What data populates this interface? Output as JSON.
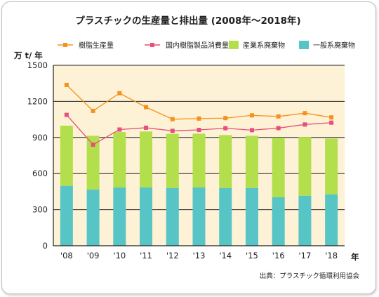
{
  "chart_data": {
    "type": "bar",
    "title": "プラスチックの生産量と排出量 (2008年〜2018年)",
    "ylabel": "万 t/ 年",
    "xlabel": "年",
    "ylim": [
      0,
      1500
    ],
    "yticks": [
      0,
      300,
      600,
      900,
      1200,
      1500
    ],
    "grid": true,
    "legend_position": "top",
    "categories": [
      "'08",
      "'09",
      "'10",
      "'11",
      "'12",
      "'13",
      "'14",
      "'15",
      "'16",
      "'17",
      "'18"
    ],
    "series": [
      {
        "name": "樹脂生産量",
        "kind": "line",
        "color": "#f5921e",
        "values": [
          1337,
          1121,
          1268,
          1152,
          1052,
          1057,
          1061,
          1084,
          1075,
          1102,
          1067
        ]
      },
      {
        "name": "国内樹脂製品消費量",
        "kind": "line",
        "color": "#e6507a",
        "values": [
          1088,
          840,
          966,
          981,
          955,
          963,
          977,
          961,
          978,
          1008,
          1023
        ]
      },
      {
        "name": "産業系廃棄物",
        "kind": "stacked-bar",
        "color": "#b3df4c",
        "values": [
          500,
          446,
          460,
          465,
          450,
          447,
          440,
          434,
          496,
          487,
          463
        ]
      },
      {
        "name": "一般系廃棄物",
        "kind": "stacked-bar",
        "color": "#57c4c6",
        "values": [
          498,
          468,
          485,
          485,
          480,
          485,
          480,
          480,
          403,
          416,
          428
        ]
      }
    ],
    "source": "出典：プラスチック循環利用協会"
  }
}
